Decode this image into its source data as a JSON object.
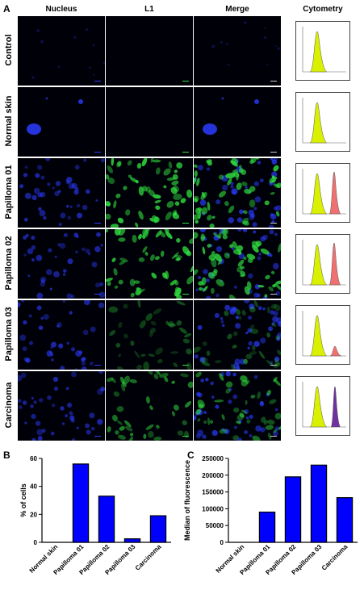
{
  "panel_labels": {
    "a": "A",
    "b": "B",
    "c": "C"
  },
  "column_headers": [
    "Nucleus",
    "L1",
    "Merge",
    "Cytometry"
  ],
  "rows": [
    {
      "label": "Control",
      "nucleus": "none",
      "l1": "none",
      "merge": "none",
      "cytometry": "single"
    },
    {
      "label": "Normal skin",
      "nucleus": "sparse",
      "l1": "none",
      "merge": "sparse",
      "cytometry": "single"
    },
    {
      "label": "Papilloma 01",
      "nucleus": "dense",
      "l1": "strong",
      "merge": "strong",
      "cytometry": "double-red"
    },
    {
      "label": "Papilloma 02",
      "nucleus": "dense",
      "l1": "strong",
      "merge": "strong",
      "cytometry": "double-red"
    },
    {
      "label": "Papilloma 03",
      "nucleus": "dense",
      "l1": "weak",
      "merge": "weak",
      "cytometry": "double-small-red"
    },
    {
      "label": "Carcinoma",
      "nucleus": "dense",
      "l1": "medium",
      "merge": "medium",
      "cytometry": "double-purple"
    }
  ],
  "colors": {
    "bar_fill": "#0000ff",
    "histogram_control": "#d9f000",
    "histogram_positive": "#f07070",
    "histogram_carcinoma": "#7030a0",
    "nucleus_stain": "#2a3cff",
    "l1_stain": "#30e040"
  },
  "chart_data": [
    {
      "type": "bar",
      "categories": [
        "Normal skin",
        "Papilloma 01",
        "Papilloma 02",
        "Papilloma 03",
        "Carcinoma"
      ],
      "values": [
        0,
        56,
        33,
        2.5,
        19
      ],
      "title": "",
      "xlabel": "",
      "ylabel": "% of cells",
      "ylim": [
        0,
        60
      ],
      "yticks": [
        "0",
        "20",
        "40",
        "60"
      ]
    },
    {
      "type": "bar",
      "categories": [
        "Normal skin",
        "Papilloma 01",
        "Papilloma 02",
        "Papilloma 03",
        "Carcinoma"
      ],
      "values": [
        0,
        90000,
        195000,
        230000,
        133000
      ],
      "title": "",
      "xlabel": "",
      "ylabel": "Median of fluorescence",
      "ylim": [
        0,
        250000
      ],
      "yticks": [
        "0",
        "50000",
        "100000",
        "150000",
        "200000",
        "250000"
      ]
    }
  ]
}
